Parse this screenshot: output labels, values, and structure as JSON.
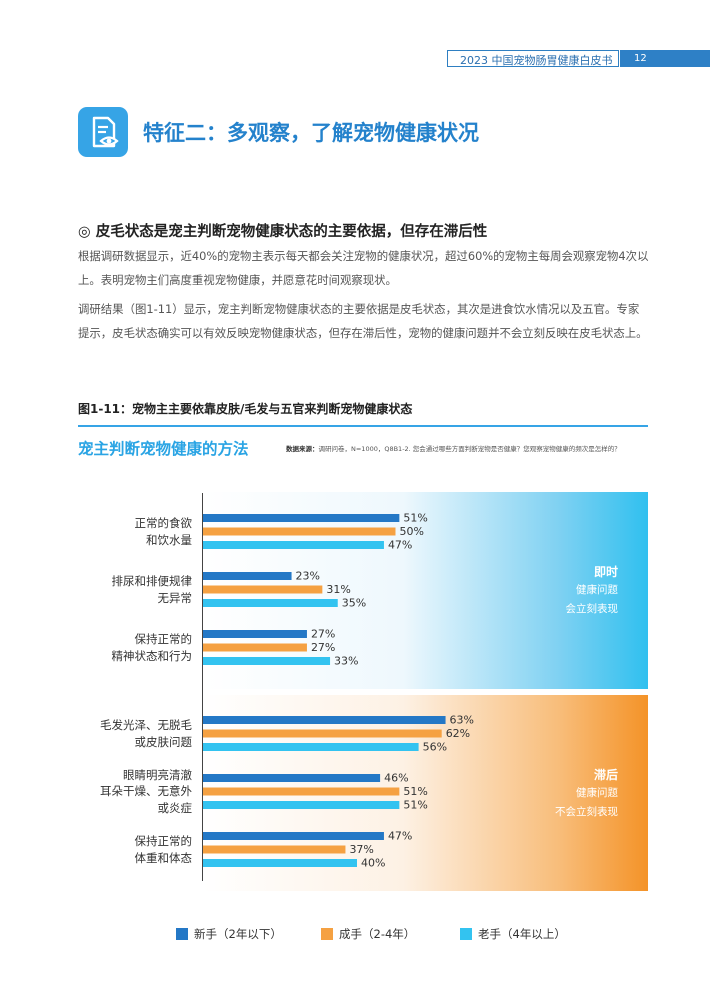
{
  "header": {
    "title": "2023 中国宠物肠胃健康白皮书",
    "page_number": "12"
  },
  "feature": {
    "icon": "document-eye-icon",
    "title": "特征二：多观察，了解宠物健康状况"
  },
  "section": {
    "title": "◎ 皮毛状态是宠主判断宠物健康状态的主要依据，但存在滞后性",
    "paragraph1": "根据调研数据显示，近40%的宠物主表示每天都会关注宠物的健康状况，超过60%的宠物主每周会观察宠物4次以上。表明宠物主们高度重视宠物健康，并愿意花时间观察现状。",
    "paragraph2": "调研结果（图1-11）显示，宠主判断宠物健康状态的主要依据是皮毛状态，其次是进食饮水情况以及五官。专家提示，皮毛状态确实可以有效反映宠物健康状态，但存在滞后性，宠物的健康问题并不会立刻反映在皮毛状态上。"
  },
  "figure": {
    "title": "图1-11：宠物主主要依靠皮肤/毛发与五官来判断宠物健康状态",
    "subtitle": "宠主判断宠物健康的方法",
    "source_label": "数据来源：",
    "source_text": "调研问卷，N=1000，Q8B1-2. 您会通过哪些方面判断宠物是否健康？您观察宠物健康的频次是怎样的？"
  },
  "bands": {
    "top": {
      "title": "即时",
      "line1": "健康问题",
      "line2": "会立刻表现"
    },
    "bottom": {
      "title": "滞后",
      "line1": "健康问题",
      "line2": "不会立刻表现"
    }
  },
  "chart_data": {
    "type": "bar",
    "orientation": "horizontal",
    "categories": [
      "正常的食欲\n和饮水量",
      "排尿和排便规律\n无异常",
      "保持正常的\n精神状态和行为",
      "毛发光泽、无脱毛\n或皮肤问题",
      "眼睛明亮清澈\n耳朵干燥、无意外\n或炎症",
      "保持正常的\n体重和体态"
    ],
    "series": [
      {
        "name": "新手（2年以下）",
        "color": "#2478c6",
        "values": [
          51,
          23,
          27,
          63,
          46,
          47
        ]
      },
      {
        "name": "成手（2-4年）",
        "color": "#f5a142",
        "values": [
          50,
          31,
          27,
          62,
          51,
          37
        ]
      },
      {
        "name": "老手（4年以上）",
        "color": "#33c3f0",
        "values": [
          47,
          35,
          33,
          56,
          51,
          40
        ]
      }
    ],
    "value_suffix": "%",
    "xlim": [
      0,
      100
    ],
    "legend_position": "bottom"
  }
}
